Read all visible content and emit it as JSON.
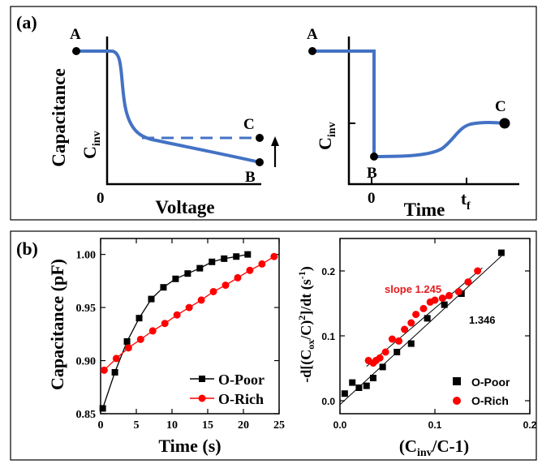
{
  "colors": {
    "schematic_line": "#4472c4",
    "o_poor": "#000000",
    "o_rich": "#ff0000",
    "slope_text": "#e41a1c",
    "fit": "#000000"
  },
  "panel_a": {
    "label": "(a)",
    "left": {
      "ylabel": "Capacitance",
      "xlabel": "Voltage",
      "xtick": "0",
      "cinv": {
        "main": "C",
        "sub": "inv"
      },
      "points": {
        "A": "A",
        "B": "B",
        "C": "C"
      }
    },
    "right": {
      "xlabel": "Time",
      "xtick_0": "0",
      "tf": {
        "main": "t",
        "sub": "f"
      },
      "cinv": {
        "main": "C",
        "sub": "inv"
      },
      "points": {
        "A": "A",
        "B": "B",
        "C": "C"
      }
    }
  },
  "panel_b": {
    "label": "(b)"
  },
  "chart_data": [
    {
      "type": "line",
      "xlabel": "Time (s)",
      "ylabel": "Capacitance (pF)",
      "xlim": [
        0,
        25
      ],
      "ylim": [
        0.85,
        1.015
      ],
      "xticks": [
        "0",
        "5",
        "10",
        "15",
        "20",
        "25"
      ],
      "yticks": [
        "0.85",
        "0.90",
        "0.95",
        "1.00"
      ],
      "legend": "bottom-right",
      "series": [
        {
          "name": "O-Poor",
          "marker": "square",
          "x": [
            0.3,
            2.0,
            3.7,
            5.4,
            7.1,
            8.8,
            10.5,
            12.2,
            13.9,
            15.6,
            17.3,
            19.0,
            20.6
          ],
          "y": [
            0.855,
            0.889,
            0.918,
            0.94,
            0.958,
            0.969,
            0.977,
            0.982,
            0.987,
            0.993,
            0.996,
            0.998,
            1.0
          ]
        },
        {
          "name": "O-Rich",
          "marker": "circle",
          "x": [
            0.5,
            2.2,
            3.9,
            5.6,
            7.3,
            9.0,
            10.7,
            12.4,
            14.1,
            15.8,
            17.5,
            19.2,
            20.9,
            22.6,
            24.3
          ],
          "y": [
            0.891,
            0.902,
            0.912,
            0.92,
            0.928,
            0.935,
            0.943,
            0.95,
            0.957,
            0.965,
            0.971,
            0.978,
            0.985,
            0.991,
            0.998
          ]
        }
      ]
    },
    {
      "type": "scatter",
      "xlabel": {
        "prefix": "(C",
        "sub": "inv",
        "suffix": "/C-1)"
      },
      "ylabel": {
        "p1": "-d[(C",
        "sub1": "ox",
        "p2": "/C)",
        "sup1": "2",
        "p3": "]/dt (s",
        "sup2": "-1",
        "p4": ")"
      },
      "xlim": [
        0,
        0.2
      ],
      "ylim": [
        -0.02,
        0.25
      ],
      "xticks": [
        "0.0",
        "0.1",
        "0.2"
      ],
      "yticks": [
        "0.0",
        "0.1",
        "0.2"
      ],
      "legend": "bottom-right",
      "series": [
        {
          "name": "O-Poor",
          "marker": "square",
          "x": [
            0.005,
            0.013,
            0.02,
            0.028,
            0.035,
            0.045,
            0.06,
            0.075,
            0.092,
            0.11,
            0.128,
            0.17
          ],
          "y": [
            0.011,
            0.028,
            0.02,
            0.023,
            0.035,
            0.052,
            0.075,
            0.088,
            0.127,
            0.148,
            0.165,
            0.228
          ]
        },
        {
          "name": "O-Rich",
          "marker": "circle",
          "x": [
            0.03,
            0.035,
            0.038,
            0.042,
            0.048,
            0.055,
            0.062,
            0.068,
            0.075,
            0.08,
            0.088,
            0.095,
            0.1,
            0.108,
            0.115,
            0.125,
            0.135,
            0.145
          ],
          "y": [
            0.062,
            0.058,
            0.062,
            0.066,
            0.075,
            0.095,
            0.092,
            0.11,
            0.12,
            0.133,
            0.142,
            0.152,
            0.155,
            0.158,
            0.162,
            0.168,
            0.183,
            0.2
          ]
        }
      ],
      "fits": [
        {
          "label": "slope 1.245",
          "slope": 1.245,
          "intercept": 0.018,
          "x_range": [
            0.028,
            0.15
          ],
          "color": "#e41a1c"
        },
        {
          "label": "1.346",
          "slope": 1.346,
          "intercept": -0.006,
          "x_range": [
            0.0,
            0.17
          ],
          "color": "#000000"
        }
      ]
    }
  ]
}
